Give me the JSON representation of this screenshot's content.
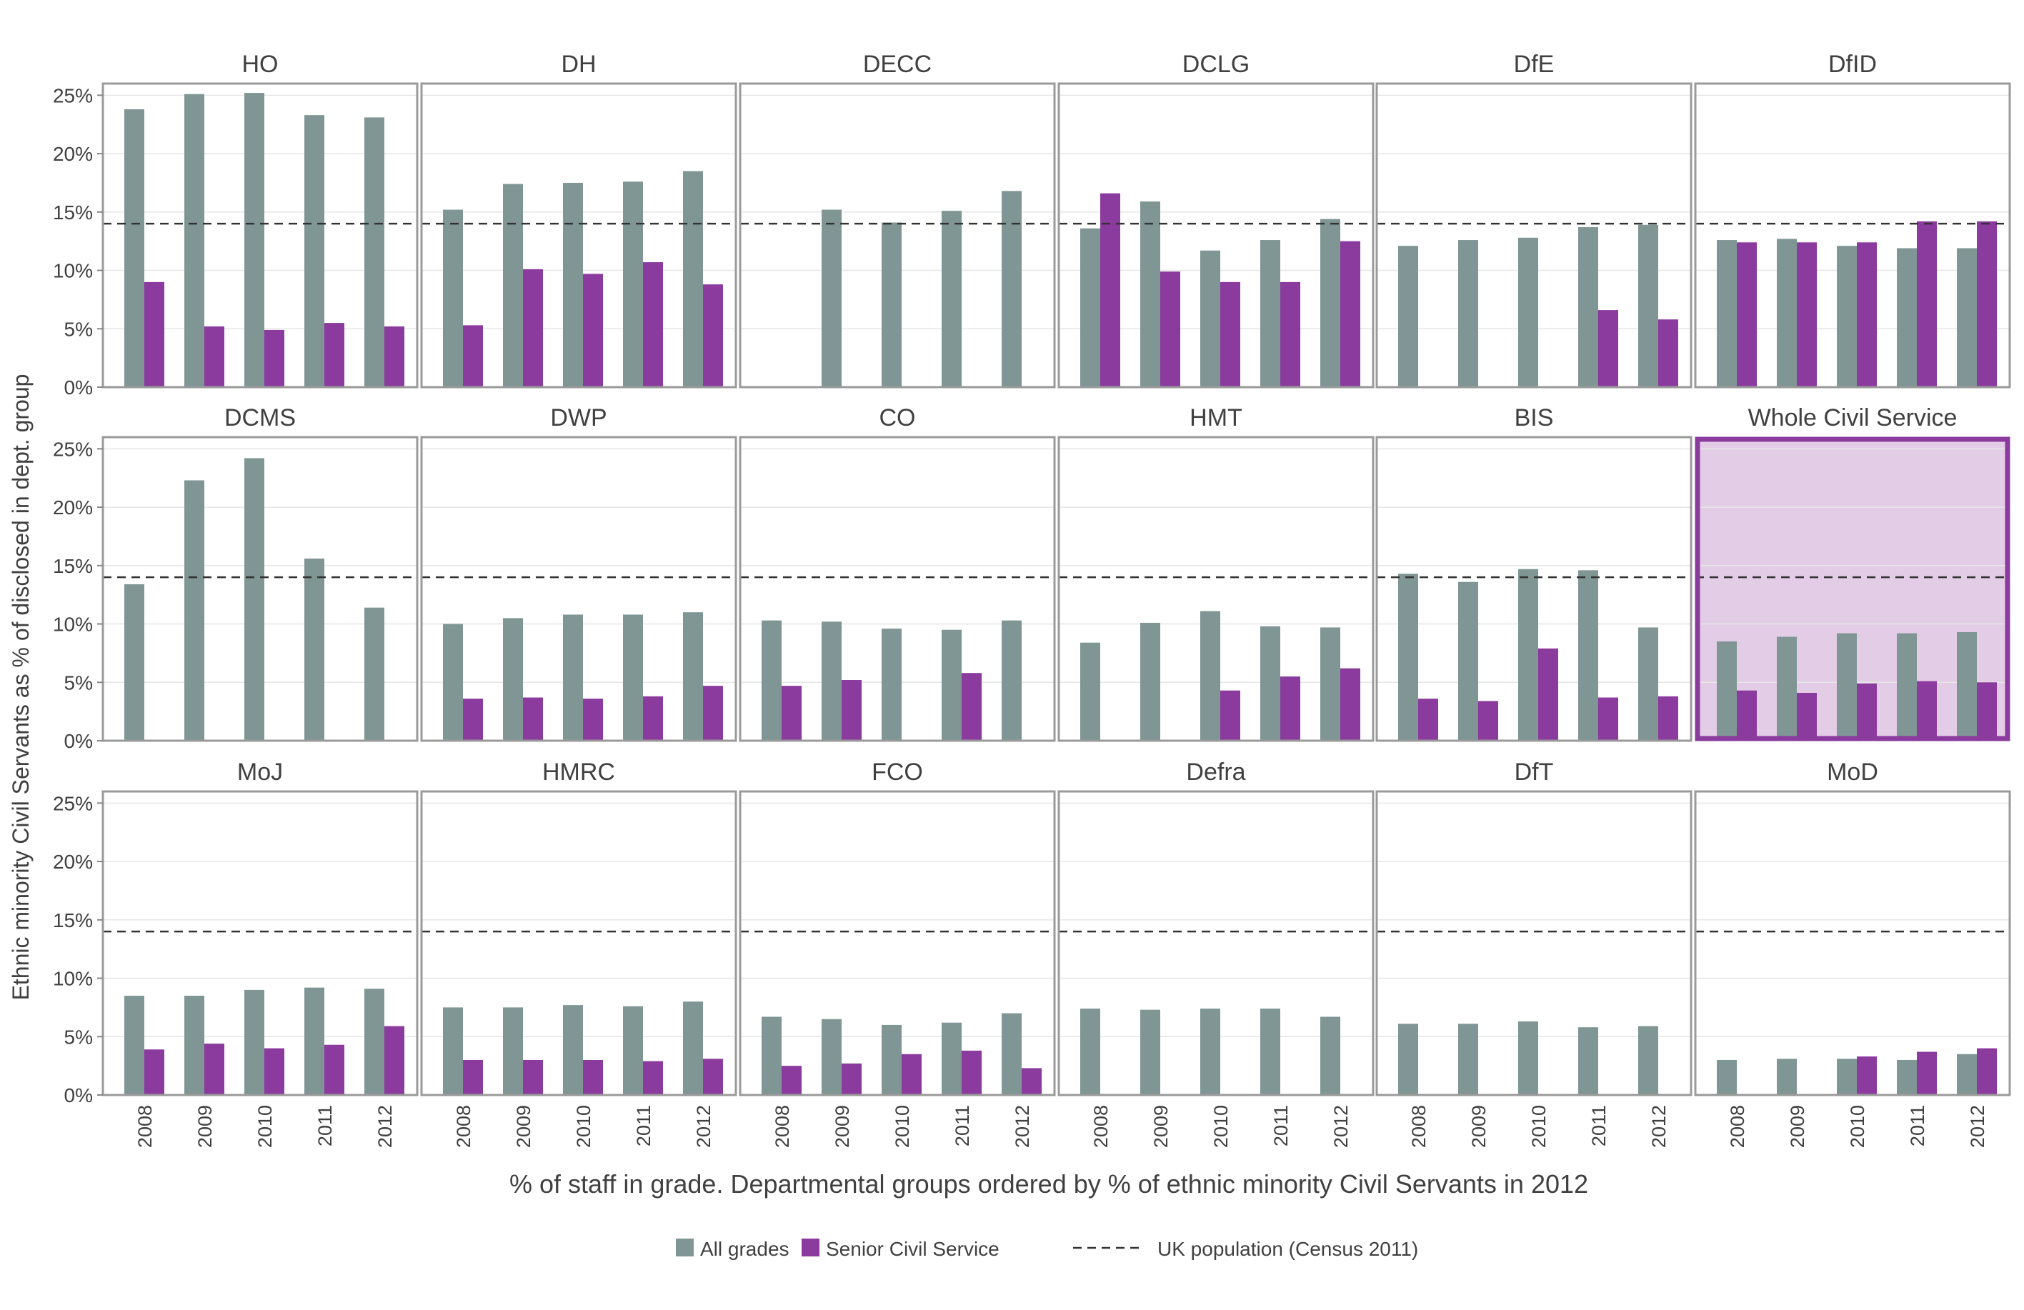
{
  "chart_data": {
    "type": "bar",
    "layout": "small-multiples",
    "ylabel": "Ethnic minority Civil Servants as % of disclosed in dept. group",
    "xlabel": "% of staff in grade. Departmental groups ordered by % of ethnic minority Civil Servants in 2012",
    "ylim": [
      0,
      26
    ],
    "yticks": [
      "0%",
      "5%",
      "10%",
      "15%",
      "20%",
      "25%"
    ],
    "ytick_values": [
      0,
      5,
      10,
      15,
      20,
      25
    ],
    "categories": [
      "2008",
      "2009",
      "2010",
      "2011",
      "2012"
    ],
    "reference_line": {
      "label": "UK population (Census 2011)",
      "value": 14,
      "style": "dashed"
    },
    "legend": {
      "placement": "bottom",
      "items": [
        {
          "label": "All grades",
          "color": "#7F9694"
        },
        {
          "label": "Senior Civil Service",
          "color": "#8B3A9E"
        },
        {
          "label": "UK population (Census 2011)",
          "color": "#333333",
          "style": "dashed"
        }
      ]
    },
    "colors": {
      "all_grades": "#7F9694",
      "scs": "#8B3A9E",
      "panel_border": "#9A9A9A",
      "highlight_border": "#8B3A9E",
      "highlight_fill": "#E2CCE6",
      "grid": "#E6E6E6"
    },
    "panels": [
      {
        "title": "HO",
        "all_grades": [
          23.8,
          25.1,
          25.2,
          23.3,
          23.1
        ],
        "scs": [
          9.0,
          5.2,
          4.9,
          5.5,
          5.2
        ]
      },
      {
        "title": "DH",
        "all_grades": [
          15.2,
          17.4,
          17.5,
          17.6,
          18.5
        ],
        "scs": [
          5.3,
          10.1,
          9.7,
          10.7,
          8.8
        ]
      },
      {
        "title": "DECC",
        "all_grades": [
          null,
          15.2,
          14.1,
          15.1,
          16.8
        ],
        "scs": [
          null,
          null,
          null,
          null,
          null
        ]
      },
      {
        "title": "DCLG",
        "all_grades": [
          13.6,
          15.9,
          11.7,
          12.6,
          14.4
        ],
        "scs": [
          16.6,
          9.9,
          9.0,
          9.0,
          12.5
        ]
      },
      {
        "title": "DfE",
        "all_grades": [
          12.1,
          12.6,
          12.8,
          13.7,
          13.9
        ],
        "scs": [
          null,
          null,
          null,
          6.6,
          5.8
        ]
      },
      {
        "title": "DfID",
        "all_grades": [
          12.6,
          12.7,
          12.1,
          11.9,
          11.9
        ],
        "scs": [
          12.4,
          12.4,
          12.4,
          14.2,
          14.2
        ]
      },
      {
        "title": "DCMS",
        "all_grades": [
          13.4,
          22.3,
          24.2,
          15.6,
          11.4
        ],
        "scs": [
          null,
          null,
          null,
          null,
          null
        ]
      },
      {
        "title": "DWP",
        "all_grades": [
          10.0,
          10.5,
          10.8,
          10.8,
          11.0
        ],
        "scs": [
          3.6,
          3.7,
          3.6,
          3.8,
          4.7
        ]
      },
      {
        "title": "CO",
        "all_grades": [
          10.3,
          10.2,
          9.6,
          9.5,
          10.3
        ],
        "scs": [
          4.7,
          5.2,
          null,
          5.8,
          null
        ]
      },
      {
        "title": "HMT",
        "all_grades": [
          8.4,
          10.1,
          11.1,
          9.8,
          9.7
        ],
        "scs": [
          null,
          null,
          4.3,
          5.5,
          6.2
        ]
      },
      {
        "title": "BIS",
        "all_grades": [
          14.3,
          13.6,
          14.7,
          14.6,
          9.7
        ],
        "scs": [
          3.6,
          3.4,
          7.9,
          3.7,
          3.8
        ]
      },
      {
        "title": "Whole Civil Service",
        "highlight": true,
        "all_grades": [
          8.5,
          8.9,
          9.2,
          9.2,
          9.3
        ],
        "scs": [
          4.3,
          4.1,
          4.9,
          5.1,
          5.0
        ]
      },
      {
        "title": "MoJ",
        "all_grades": [
          8.5,
          8.5,
          9.0,
          9.2,
          9.1
        ],
        "scs": [
          3.9,
          4.4,
          4.0,
          4.3,
          5.9
        ]
      },
      {
        "title": "HMRC",
        "all_grades": [
          7.5,
          7.5,
          7.7,
          7.6,
          8.0
        ],
        "scs": [
          3.0,
          3.0,
          3.0,
          2.9,
          3.1
        ]
      },
      {
        "title": "FCO",
        "all_grades": [
          6.7,
          6.5,
          6.0,
          6.2,
          7.0
        ],
        "scs": [
          2.5,
          2.7,
          3.5,
          3.8,
          2.3
        ]
      },
      {
        "title": "Defra",
        "all_grades": [
          7.4,
          7.3,
          7.4,
          7.4,
          6.7
        ],
        "scs": [
          null,
          null,
          null,
          null,
          null
        ]
      },
      {
        "title": "DfT",
        "all_grades": [
          6.1,
          6.1,
          6.3,
          5.8,
          5.9
        ],
        "scs": [
          null,
          null,
          null,
          null,
          null
        ]
      },
      {
        "title": "MoD",
        "all_grades": [
          3.0,
          3.1,
          3.1,
          3.0,
          3.5
        ],
        "scs": [
          null,
          null,
          3.3,
          3.7,
          4.0
        ]
      }
    ]
  }
}
